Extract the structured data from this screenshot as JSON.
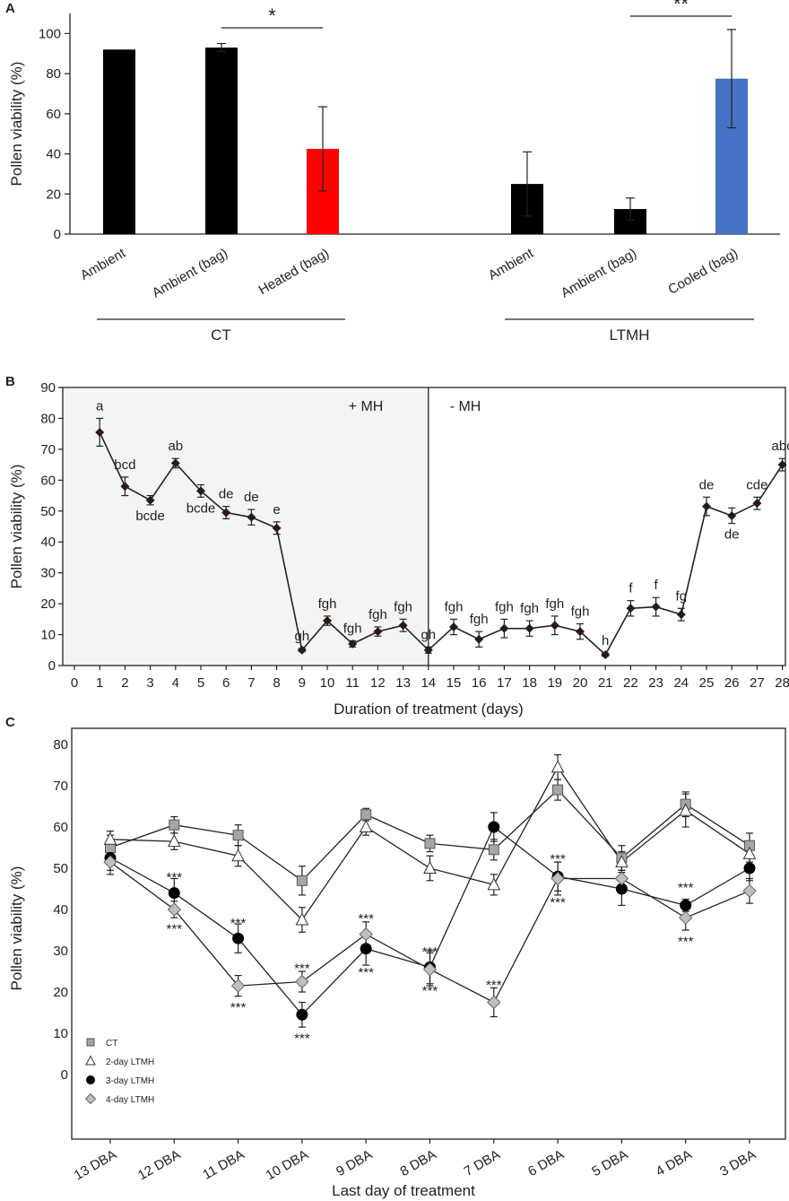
{
  "panels": {
    "A": "A",
    "B": "B",
    "C": "C"
  },
  "chart_data": [
    {
      "id": "A",
      "type": "bar",
      "title": "",
      "ylabel": "Pollen viability (%)",
      "ylim": [
        0,
        110
      ],
      "yticks": [
        0,
        20,
        40,
        60,
        80,
        100
      ],
      "categories": [
        "Ambient",
        "Ambient (bag)",
        "Heated (bag)",
        "Ambient",
        "Ambient (bag)",
        "Cooled (bag)"
      ],
      "values": [
        92,
        93,
        42.5,
        25,
        12.5,
        77.5
      ],
      "errors": [
        0,
        2,
        21,
        16,
        5.5,
        24.5
      ],
      "colors": [
        "#000000",
        "#000000",
        "#ff0000",
        "#000000",
        "#000000",
        "#4472c4"
      ],
      "groups": [
        {
          "label": "CT",
          "first": 0,
          "last": 2
        },
        {
          "label": "LTMH",
          "first": 3,
          "last": 5
        }
      ],
      "significance": [
        {
          "label": "*",
          "from": 1,
          "to": 2
        },
        {
          "label": "**",
          "from": 4,
          "to": 5
        }
      ]
    },
    {
      "id": "B",
      "type": "line",
      "xlabel": "Duration of treatment (days)",
      "ylabel": "Pollen viability (%)",
      "xlim": [
        0,
        28
      ],
      "ylim": [
        0,
        90
      ],
      "xticks": [
        0,
        1,
        2,
        3,
        4,
        5,
        6,
        7,
        8,
        9,
        10,
        11,
        12,
        13,
        14,
        15,
        16,
        17,
        18,
        19,
        20,
        21,
        22,
        23,
        24,
        25,
        26,
        27,
        28
      ],
      "yticks": [
        0,
        10,
        20,
        30,
        40,
        50,
        60,
        70,
        80,
        90
      ],
      "x": [
        1,
        2,
        3,
        4,
        5,
        6,
        7,
        8,
        9,
        10,
        11,
        12,
        13,
        14,
        15,
        16,
        17,
        18,
        19,
        20,
        21,
        22,
        23,
        24,
        25,
        26,
        27,
        28
      ],
      "values": [
        75.5,
        58,
        53.5,
        65.5,
        56.5,
        49.5,
        48,
        44.5,
        5,
        14.5,
        7,
        11,
        13,
        5,
        12.5,
        8.5,
        12,
        12,
        13,
        11,
        3.5,
        18.5,
        19,
        16.5,
        51.5,
        48.5,
        52.5,
        65
      ],
      "errors": [
        4.5,
        3,
        1.5,
        1.5,
        2,
        2,
        2.5,
        2,
        0.5,
        1.5,
        1,
        1.5,
        2,
        1,
        2.5,
        2.5,
        3,
        2.5,
        3,
        2.5,
        0.5,
        2.5,
        3,
        2,
        3,
        2.5,
        2,
        2
      ],
      "letters": [
        "a",
        "bcd",
        "bcde",
        "ab",
        "bcde",
        "de",
        "de",
        "e",
        "gh",
        "fgh",
        "fgh",
        "fgh",
        "fgh",
        "gh",
        "fgh",
        "fgh",
        "fgh",
        "fgh",
        "fgh",
        "fgh",
        "h",
        "f",
        "f",
        "fg",
        "de",
        "de",
        "cde",
        "abc"
      ],
      "letter_below": [
        false,
        false,
        true,
        false,
        true,
        false,
        false,
        false,
        false,
        false,
        false,
        false,
        false,
        false,
        false,
        false,
        false,
        false,
        false,
        false,
        false,
        false,
        false,
        false,
        false,
        true,
        false,
        false
      ],
      "regions": [
        {
          "label": "+ MH",
          "from": 0,
          "to": 14,
          "shaded": true
        },
        {
          "label": "- MH",
          "from": 14,
          "to": 28,
          "shaded": false
        }
      ]
    },
    {
      "id": "C",
      "type": "line",
      "xlabel": "Last day of treatment",
      "ylabel": "Pollen viability (%)",
      "ylim": [
        0,
        80
      ],
      "yticks": [
        0,
        10,
        20,
        30,
        40,
        50,
        60,
        70,
        80
      ],
      "categories": [
        "13 DBA",
        "12 DBA",
        "11 DBA",
        "10 DBA",
        "9 DBA",
        "8 DBA",
        "7 DBA",
        "6 DBA",
        "5 DBA",
        "4 DBA",
        "3 DBA"
      ],
      "series": [
        {
          "name": "CT",
          "marker": "square",
          "color": "#a6a6a6",
          "values": [
            55,
            60.5,
            58,
            47,
            63,
            56,
            54.5,
            69,
            52.5,
            65.5,
            55.5
          ],
          "errors": [
            3,
            2,
            2.5,
            3.5,
            1.5,
            2,
            2.5,
            2.5,
            3,
            3,
            3
          ]
        },
        {
          "name": "2-day LTMH",
          "marker": "triangle",
          "color": "#ffffff",
          "values": [
            57,
            56.5,
            53,
            37.5,
            60,
            50,
            46,
            74.5,
            51.5,
            64,
            53.5
          ],
          "errors": [
            2,
            2,
            2.5,
            3,
            2,
            3,
            2.5,
            3,
            2.5,
            4,
            2
          ]
        },
        {
          "name": "3-day LTMH",
          "marker": "circle",
          "color": "#000000",
          "values": [
            52.5,
            44,
            33,
            14.5,
            30.5,
            26,
            60,
            48,
            45,
            41,
            50
          ],
          "errors": [
            3,
            3.5,
            3.5,
            3,
            4,
            4,
            3.5,
            3.5,
            4,
            1.5,
            3
          ]
        },
        {
          "name": "4-day LTMH",
          "marker": "diamond",
          "color": "#bfbfbf",
          "values": [
            51.5,
            40,
            21.5,
            22.5,
            34,
            25.5,
            17.5,
            47.5,
            47.5,
            38,
            44.5
          ],
          "errors": [
            3,
            2,
            2.5,
            2.5,
            3,
            4,
            3.5,
            4,
            2,
            3,
            3
          ]
        }
      ],
      "annotations": [
        {
          "text": "***",
          "index": 1,
          "value": 48
        },
        {
          "text": "***",
          "index": 1,
          "value": 35.5
        },
        {
          "text": "***",
          "index": 2,
          "value": 37
        },
        {
          "text": "***",
          "index": 2,
          "value": 16.5
        },
        {
          "text": "***",
          "index": 3,
          "value": 26
        },
        {
          "text": "***",
          "index": 3,
          "value": 9
        },
        {
          "text": "***",
          "index": 4,
          "value": 38
        },
        {
          "text": "***",
          "index": 4,
          "value": 25
        },
        {
          "text": "***",
          "index": 5,
          "value": 30
        },
        {
          "text": "***",
          "index": 5,
          "value": 20.5
        },
        {
          "text": "***",
          "index": 6,
          "value": 22
        },
        {
          "text": "***",
          "index": 7,
          "value": 52.5
        },
        {
          "text": "***",
          "index": 7,
          "value": 42
        },
        {
          "text": "***",
          "index": 9,
          "value": 45.5
        },
        {
          "text": "***",
          "index": 9,
          "value": 32.5
        }
      ]
    }
  ]
}
